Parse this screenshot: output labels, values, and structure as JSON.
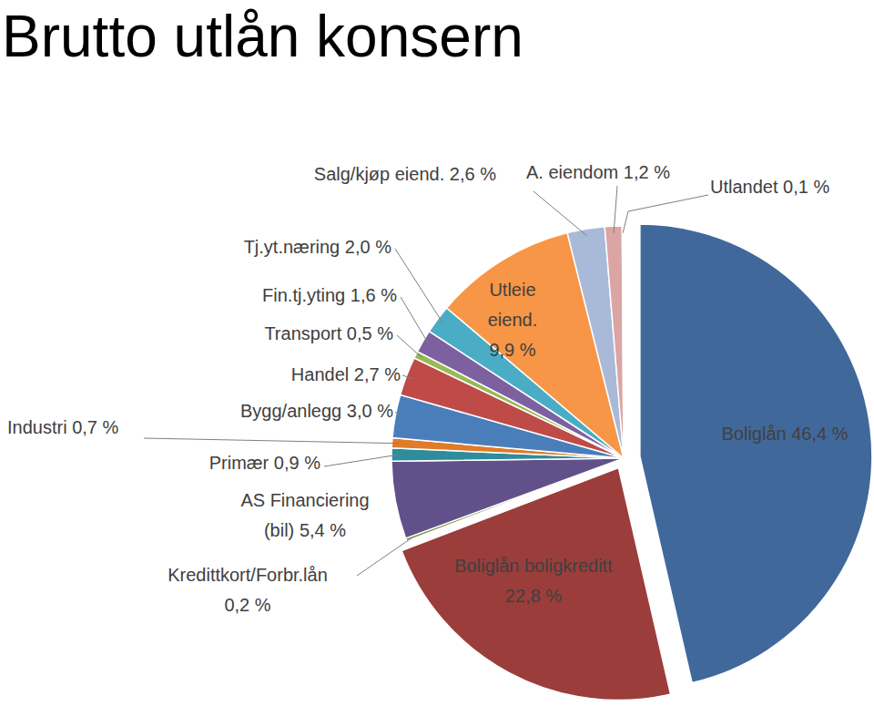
{
  "chart_data": {
    "type": "pie",
    "title": "Brutto utlån konsern",
    "categories": [
      "Boliglån",
      "Boliglån boligkreditt",
      "Kredittkort/Forbr.lån",
      "AS Financiering (bil)",
      "Primær",
      "Industri",
      "Bygg/anlegg",
      "Handel",
      "Transport",
      "Fin.tj.yting",
      "Tj.yt.næring",
      "Utleie eiend.",
      "Salg/kjøp eiend.",
      "A. eiendom",
      "Utlandet"
    ],
    "values": [
      46.4,
      22.8,
      0.2,
      5.4,
      0.9,
      0.7,
      3.0,
      2.7,
      0.5,
      1.6,
      2.0,
      9.9,
      2.6,
      1.2,
      0.1
    ],
    "value_labels": [
      "46,4 %",
      "22,8 %",
      "0,2 %",
      "5,4 %",
      "0,9 %",
      "0,7 %",
      "3,0 %",
      "2,7 %",
      "0,5 %",
      "1,6 %",
      "2,0 %",
      "9,9 %",
      "2,6 %",
      "1,2 %",
      "0,1 %"
    ],
    "colors": [
      "#41689b",
      "#9b3d3b",
      "#7a9a3c",
      "#62508a",
      "#2e8c9c",
      "#e07b2a",
      "#4a7ebb",
      "#be4b48",
      "#98b954",
      "#7d60a0",
      "#4bacc6",
      "#f79646",
      "#a9b9d8",
      "#daa5a4",
      "#c4d79b"
    ],
    "data_labels": true
  }
}
